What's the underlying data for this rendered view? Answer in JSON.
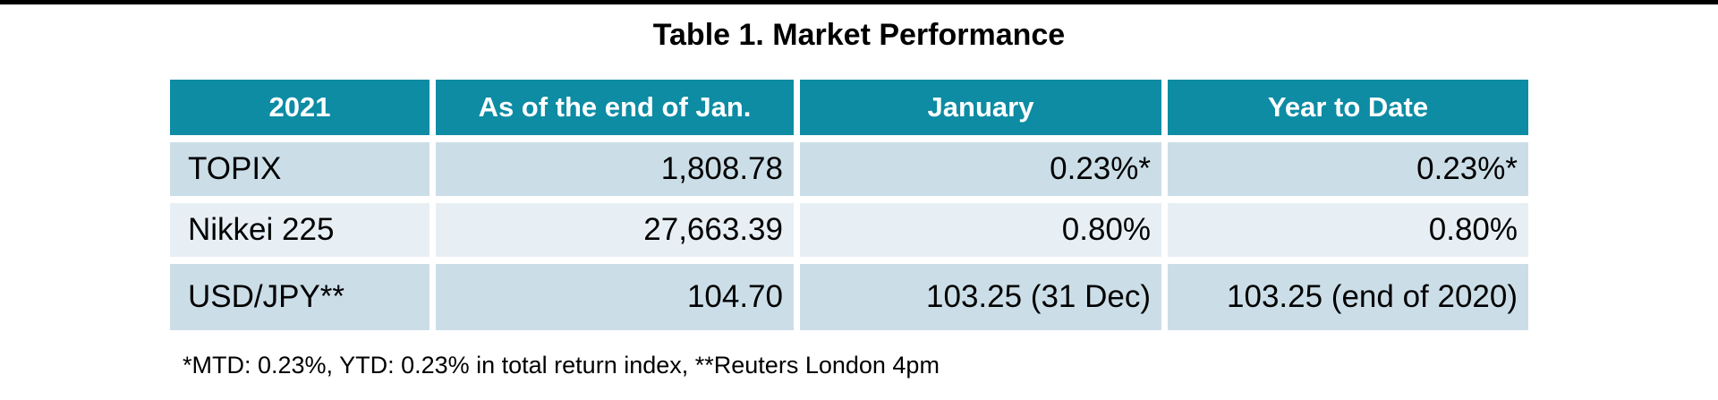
{
  "chart_data": {
    "type": "table",
    "title": "Table 1. Market Performance",
    "columns": [
      "2021",
      "As of the end of Jan.",
      "January",
      "Year to Date"
    ],
    "rows": [
      [
        "TOPIX",
        "1,808.78",
        "0.23%*",
        "0.23%*"
      ],
      [
        "Nikkei 225",
        "27,663.39",
        "0.80%",
        "0.80%"
      ],
      [
        "USD/JPY**",
        "104.70",
        "103.25 (31 Dec)",
        "103.25 (end of 2020)"
      ]
    ],
    "footnote": "*MTD: 0.23%, YTD: 0.23% in total return index, **Reuters London 4pm",
    "layout": {
      "header_row": "teal background, white bold text, centered",
      "label_column_alignment": "left",
      "value_columns_alignment": "right",
      "row_background_pattern": [
        "dark",
        "light",
        "dark"
      ]
    }
  },
  "colors": {
    "header_bg": "#0d8ca4",
    "header_text": "#ffffff",
    "row_dark": "#cbdee8",
    "row_light": "#e7eff4",
    "border_black": "#000000",
    "body_text": "#000000"
  }
}
